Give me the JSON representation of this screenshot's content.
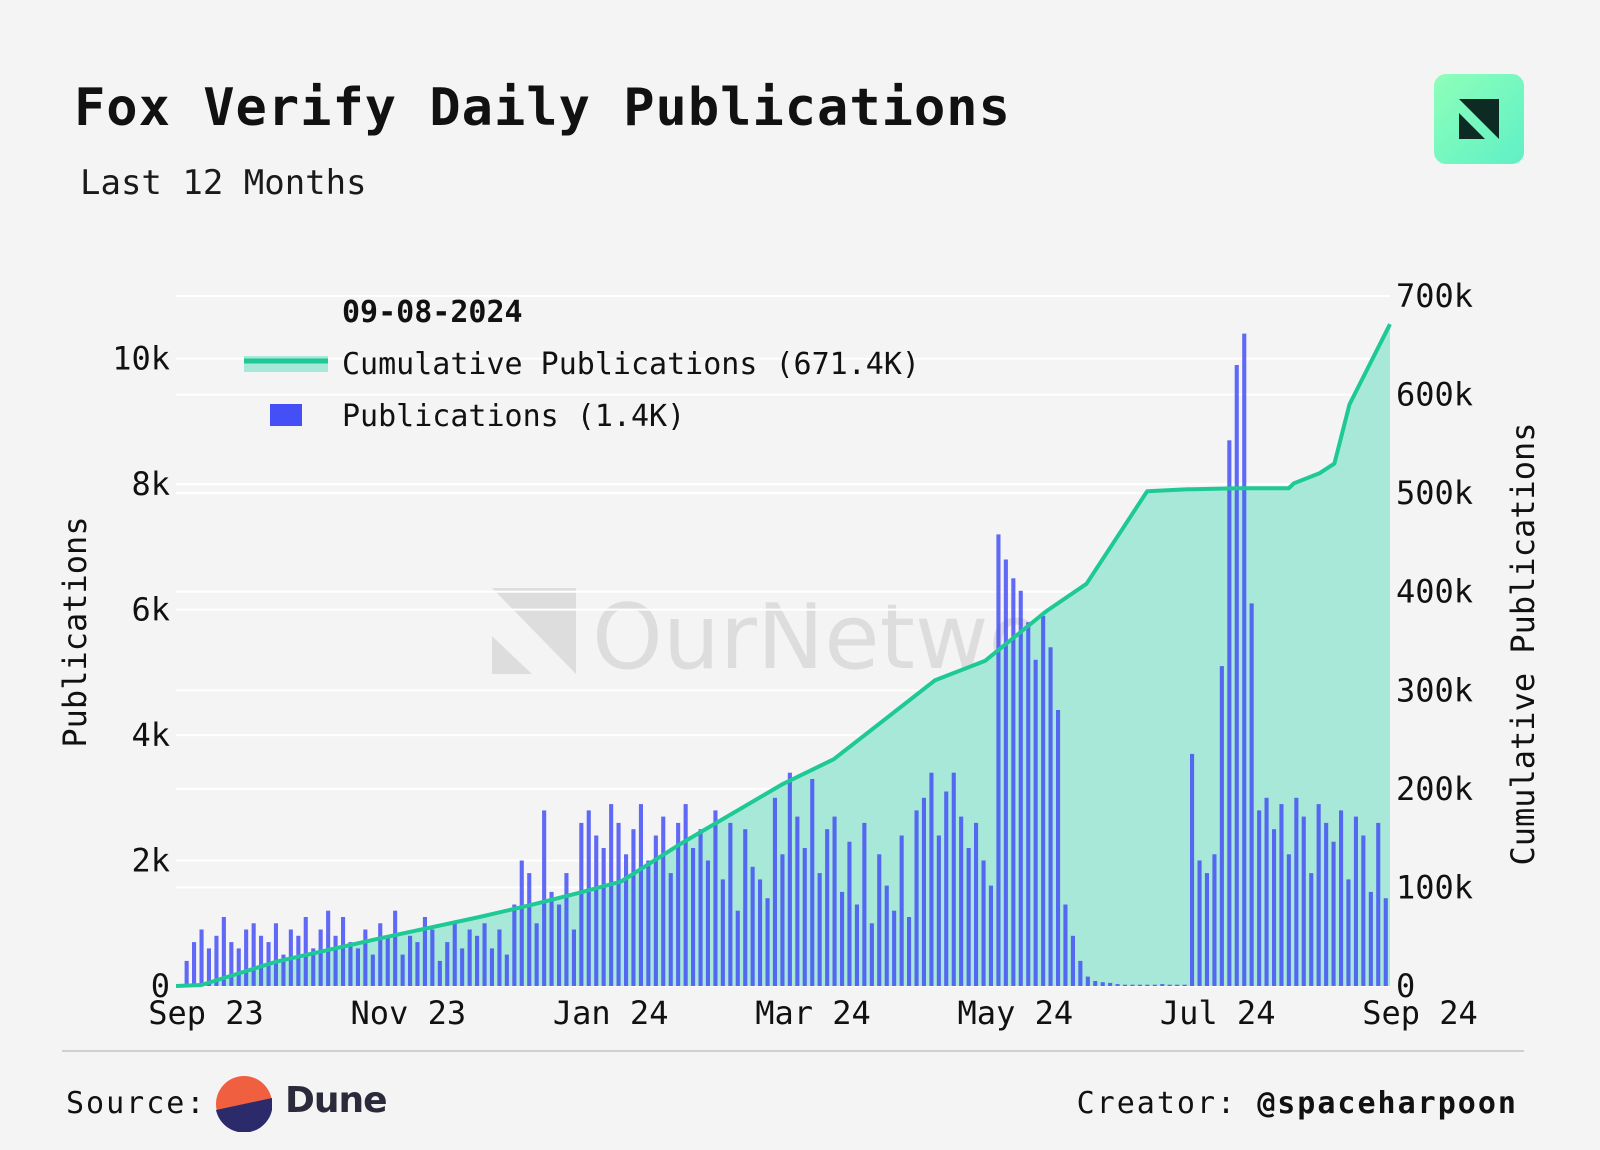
{
  "header": {
    "title": "Fox Verify Daily Publications",
    "subtitle": "Last 12 Months"
  },
  "brand": {
    "logo_icon": "ournetwork-logo-icon",
    "watermark_text": "OurNetwork",
    "badge_color_start": "#8effb9",
    "badge_color_end": "#5ff0c6"
  },
  "footer": {
    "source_label": "Source:",
    "source_name": "Dune",
    "creator_label": "Creator:",
    "creator_handle": "@spaceharpoon"
  },
  "colors": {
    "bars": "#4450f5",
    "line": "#1ec995",
    "area": "#a8e8d8",
    "grid": "#ffffff",
    "background": "#f4f4f4"
  },
  "chart_data": {
    "type": "bar",
    "title": "Fox Verify Daily Publications",
    "subtitle": "Last 12 Months",
    "x_start": "2023-09-08",
    "x_end": "2024-09-08",
    "xlabel": "",
    "ylabel": "Publications",
    "y2label": "Cumulative Publications",
    "ylim": [
      0,
      11000
    ],
    "y2lim": [
      0,
      700000
    ],
    "x_ticks": [
      "Sep 23",
      "Nov 23",
      "Jan 24",
      "Mar 24",
      "May 24",
      "Jul 24",
      "Sep 24"
    ],
    "y_ticks": [
      "0",
      "2k",
      "4k",
      "6k",
      "8k",
      "10k"
    ],
    "y2_ticks": [
      "0",
      "100k",
      "200k",
      "300k",
      "400k",
      "500k",
      "600k",
      "700k"
    ],
    "legend": {
      "position": "top-left",
      "date": "09-08-2024",
      "items": [
        {
          "label": "Cumulative Publications (671.4K)",
          "kind": "line"
        },
        {
          "label": "Publications (1.4K)",
          "kind": "bar"
        }
      ]
    },
    "series": [
      {
        "name": "Publications",
        "axis": "left",
        "kind": "bar",
        "monthly_sampled_values": [
          0,
          400,
          700,
          900,
          600,
          800,
          1100,
          700,
          600,
          900,
          1000,
          800,
          700,
          1000,
          500,
          900,
          800,
          1100,
          600,
          900,
          1200,
          800,
          1100,
          700,
          600,
          900,
          500,
          1000,
          800,
          1200,
          500,
          800,
          700,
          1100,
          900,
          400,
          700,
          1000,
          600,
          900,
          800,
          1000,
          600,
          900,
          500,
          1300,
          2000,
          1800,
          1000,
          2800,
          1500,
          1300,
          1800,
          900,
          2600,
          2800,
          2400,
          2200,
          2900,
          2600,
          2100,
          2500,
          2900,
          2000,
          2400,
          2700,
          1800,
          2600,
          2900,
          2200,
          2500,
          2000,
          2800,
          1700,
          2600,
          1200,
          2500,
          1900,
          1700,
          1400,
          3000,
          2100,
          3400,
          2700,
          2200,
          3300,
          1800,
          2500,
          2700,
          1500,
          2300,
          1300,
          2600,
          1000,
          2100,
          1600,
          1200,
          2400,
          1100,
          2800,
          3000,
          3400,
          2400,
          3100,
          3400,
          2700,
          2200,
          2600,
          2000,
          1600,
          7200,
          6800,
          6500,
          6300,
          5800,
          5200,
          5900,
          5400,
          4400,
          1300,
          800,
          400,
          150,
          80,
          60,
          50,
          30,
          20,
          20,
          20,
          20,
          20,
          30,
          20,
          20,
          20,
          3700,
          2000,
          1800,
          2100,
          5100,
          8700,
          9900,
          10400,
          6100,
          2800,
          3000,
          2500,
          2900,
          2100,
          3000,
          2700,
          1800,
          2900,
          2600,
          2300,
          2800,
          1700,
          2700,
          2400,
          1500,
          2600,
          1400
        ],
        "total_in_legend": 1400
      },
      {
        "name": "Cumulative Publications",
        "axis": "right",
        "kind": "line",
        "x_months_since_start": [
          0,
          0.25,
          1,
          2,
          3,
          3.5,
          4,
          4.4,
          5,
          6,
          6.5,
          7,
          7.5,
          8,
          8.6,
          9,
          9.6,
          10,
          10.05,
          10.5,
          11,
          11.05,
          11.3,
          11.45,
          11.6,
          12
        ],
        "values": [
          0,
          1000,
          25000,
          48000,
          70000,
          82000,
          95000,
          106000,
          145000,
          205000,
          230000,
          270000,
          310000,
          330000,
          380000,
          408000,
          502000,
          504000,
          504000,
          505000,
          505000,
          510000,
          520000,
          530000,
          590000,
          671400
        ],
        "total_in_legend": 671400
      }
    ]
  }
}
